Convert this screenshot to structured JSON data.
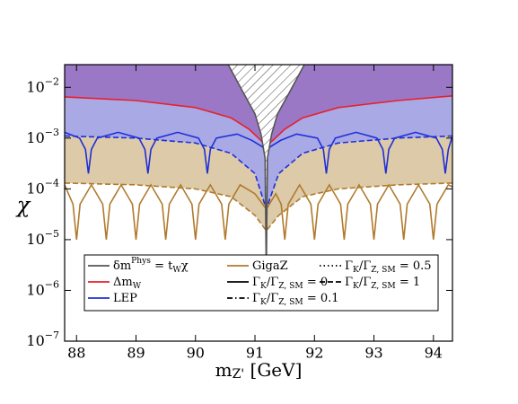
{
  "chart_data": {
    "type": "line",
    "log_y": true,
    "xlabel": [
      {
        "text": "m"
      },
      {
        "text": "Z'",
        "pos": "sub"
      },
      {
        "text": " [GeV]"
      }
    ],
    "ylabel": "χ",
    "xlim": [
      87.8,
      94.32
    ],
    "ylim": [
      1e-07,
      0.028
    ],
    "xticks": [
      88,
      89,
      90,
      91,
      92,
      93,
      94
    ],
    "yticks": [
      {
        "value": 1e-07,
        "label": "10",
        "exponent": "−7"
      },
      {
        "value": 1e-06,
        "label": "10",
        "exponent": "−6"
      },
      {
        "value": 1e-05,
        "label": "10",
        "exponent": "−5"
      },
      {
        "value": 0.0001,
        "label": "10",
        "exponent": "−4"
      },
      {
        "value": 0.001,
        "label": "10",
        "exponent": "−3"
      },
      {
        "value": 0.01,
        "label": "10",
        "exponent": "−2"
      }
    ],
    "series": [
      {
        "color": "#b07a2c",
        "dash": "dashed",
        "fill": "#dccaa8",
        "x": [
          87.8,
          89,
          90,
          90.6,
          91.0,
          91.19,
          91.4,
          91.8,
          92.4,
          93.4,
          94.32
        ],
        "values": [
          0.00013,
          0.00012,
          0.0001,
          7e-05,
          3e-05,
          1.5e-05,
          3e-05,
          7e-05,
          0.0001,
          0.00012,
          0.00013
        ]
      },
      {
        "color": "#b07a2c",
        "dash": "solid",
        "x": [
          87.8,
          87.94,
          88,
          88.06,
          88.25,
          88.44,
          88.5,
          88.56,
          88.75,
          88.94,
          89,
          89.06,
          89.25,
          89.44,
          89.5,
          89.56,
          89.75,
          89.94,
          90,
          90.06,
          90.25,
          90.44,
          90.5,
          90.56,
          90.75,
          91.0,
          91.19,
          91.35,
          91.44,
          91.5,
          91.56,
          91.75,
          91.94,
          92,
          92.06,
          92.25,
          92.44,
          92.5,
          92.56,
          92.75,
          92.94,
          93,
          93.06,
          93.25,
          93.44,
          93.5,
          93.56,
          93.75,
          93.94,
          94,
          94.06,
          94.25,
          94.32
        ],
        "values": [
          0.00012,
          5e-05,
          1e-05,
          5e-05,
          0.00012,
          5e-05,
          1e-05,
          5e-05,
          0.00012,
          5e-05,
          1e-05,
          5e-05,
          0.00012,
          5e-05,
          1e-05,
          5e-05,
          0.00012,
          5e-05,
          1e-05,
          5e-05,
          0.00012,
          5e-05,
          1e-05,
          5e-05,
          0.00012,
          8e-05,
          4e-05,
          8e-05,
          5e-05,
          1e-05,
          5e-05,
          0.00012,
          5e-05,
          1e-05,
          5e-05,
          0.00012,
          5e-05,
          1e-05,
          5e-05,
          0.00012,
          5e-05,
          1e-05,
          5e-05,
          0.00012,
          5e-05,
          1e-05,
          5e-05,
          0.00012,
          5e-05,
          1e-05,
          5e-05,
          0.00012,
          0.00011
        ]
      },
      {
        "color": "#1f2fd8",
        "dash": "dashed",
        "fill": "#a9a9e6",
        "x": [
          87.8,
          89,
          90,
          90.6,
          91.0,
          91.19,
          91.4,
          91.8,
          92.4,
          93.4,
          94.32
        ],
        "values": [
          0.0011,
          0.001,
          0.0008,
          0.0005,
          0.0002,
          4e-05,
          0.0002,
          0.0005,
          0.0008,
          0.001,
          0.0011
        ]
      },
      {
        "color": "#1f2fd8",
        "dash": "solid",
        "x": [
          87.8,
          88.05,
          88.15,
          88.2,
          88.25,
          88.35,
          88.7,
          89.05,
          89.15,
          89.2,
          89.25,
          89.35,
          89.7,
          90.05,
          90.15,
          90.2,
          90.25,
          90.35,
          90.7,
          90.95,
          91.1,
          91.19,
          91.28,
          91.43,
          91.7,
          92.05,
          92.15,
          92.2,
          92.25,
          92.35,
          92.7,
          93.05,
          93.15,
          93.2,
          93.25,
          93.35,
          93.7,
          94.05,
          94.15,
          94.2,
          94.25,
          94.32
        ],
        "values": [
          0.0013,
          0.001,
          0.0006,
          0.0002,
          0.0006,
          0.001,
          0.0013,
          0.001,
          0.0006,
          0.0002,
          0.0006,
          0.001,
          0.0013,
          0.001,
          0.0006,
          0.0002,
          0.0006,
          0.001,
          0.0012,
          0.0009,
          0.0007,
          0.0006,
          0.0007,
          0.0009,
          0.0012,
          0.001,
          0.0006,
          0.0002,
          0.0006,
          0.001,
          0.0013,
          0.001,
          0.0006,
          0.0002,
          0.0006,
          0.001,
          0.0013,
          0.001,
          0.0006,
          0.0002,
          0.0006,
          0.0011
        ]
      },
      {
        "color": "#e8202a",
        "dash": "solid",
        "fill": "#9b78c6",
        "x": [
          87.8,
          89,
          90,
          90.6,
          90.9,
          91.1,
          91.19,
          91.3,
          91.5,
          91.8,
          92.4,
          93.4,
          94.32
        ],
        "values": [
          0.0065,
          0.0055,
          0.004,
          0.0025,
          0.0015,
          0.0009,
          0.0007,
          0.0009,
          0.0015,
          0.0025,
          0.004,
          0.0055,
          0.0068
        ]
      },
      {
        "color": "#555555",
        "dash": "solid",
        "hatch": true,
        "x": [
          90.55,
          90.8,
          91.0,
          91.1,
          91.17,
          91.19,
          91.21,
          91.28,
          91.38,
          91.58,
          91.83
        ],
        "values": [
          0.028,
          0.008,
          0.003,
          0.0012,
          0.0004,
          2e-06,
          0.0004,
          0.0012,
          0.003,
          0.008,
          0.028
        ]
      }
    ],
    "legend": [
      {
        "label": [
          {
            "text": "δm"
          },
          {
            "text": "Phys",
            "pos": "sup"
          },
          {
            "text": " = t"
          },
          {
            "text": "W",
            "pos": "sub"
          },
          {
            "text": "χ"
          }
        ],
        "color": "#555555",
        "dash": "solid"
      },
      {
        "label": [
          {
            "text": "Δm"
          },
          {
            "text": "W",
            "pos": "sub"
          }
        ],
        "color": "#e8202a",
        "dash": "solid"
      },
      {
        "label": [
          {
            "text": "LEP"
          }
        ],
        "color": "#1f2fd8",
        "dash": "solid"
      },
      {
        "label": [
          {
            "text": "GigaZ"
          }
        ],
        "color": "#b07a2c",
        "dash": "solid"
      },
      {
        "label": [
          {
            "text": "Γ"
          },
          {
            "text": "K",
            "pos": "sub"
          },
          {
            "text": "/Γ"
          },
          {
            "text": "Z, SM",
            "pos": "sub"
          },
          {
            "text": " = 0"
          }
        ],
        "color": "#000000",
        "dash": "solid"
      },
      {
        "label": [
          {
            "text": "Γ"
          },
          {
            "text": "K",
            "pos": "sub"
          },
          {
            "text": "/Γ"
          },
          {
            "text": "Z, SM",
            "pos": "sub"
          },
          {
            "text": " = 0.1"
          }
        ],
        "color": "#000000",
        "dash": "dashdot"
      },
      {
        "label": [
          {
            "text": "Γ"
          },
          {
            "text": "K",
            "pos": "sub"
          },
          {
            "text": "/Γ"
          },
          {
            "text": "Z, SM",
            "pos": "sub"
          },
          {
            "text": " = 0.5"
          }
        ],
        "color": "#000000",
        "dash": "dotted"
      },
      {
        "label": [
          {
            "text": "Γ"
          },
          {
            "text": "K",
            "pos": "sub"
          },
          {
            "text": "/Γ"
          },
          {
            "text": "Z, SM",
            "pos": "sub"
          },
          {
            "text": " = 1"
          }
        ],
        "color": "#000000",
        "dash": "dashed"
      }
    ]
  }
}
